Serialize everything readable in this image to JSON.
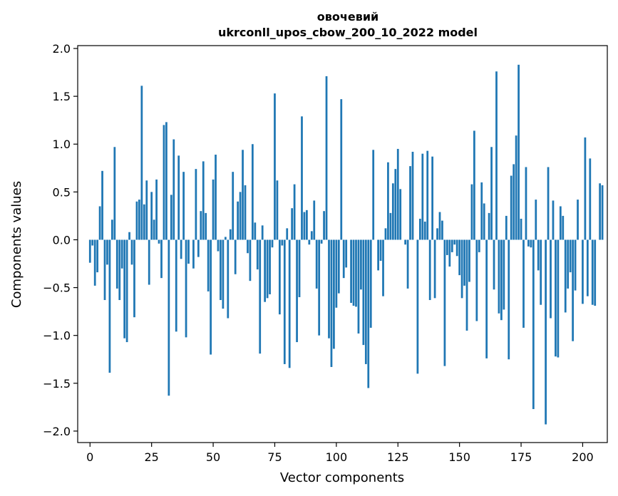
{
  "chart_data": {
    "type": "bar",
    "title_line1": "овочевий",
    "title_line2": "ukrconll_upos_cbow_200_10_2022 model",
    "xlabel": "Vector components",
    "ylabel": "Components values",
    "xlim": [
      -5,
      210
    ],
    "ylim": [
      -2.12,
      2.03
    ],
    "xticks": [
      0,
      25,
      50,
      75,
      100,
      125,
      150,
      175,
      200
    ],
    "yticks": [
      2.0,
      1.5,
      1.0,
      0.5,
      0.0,
      -0.5,
      -1.0,
      -1.5,
      -2.0
    ],
    "ytick_labels": [
      "2.0",
      "1.5",
      "1.0",
      "0.5",
      "0.0",
      "−0.5",
      "−1.0",
      "−1.5",
      "−2.0"
    ],
    "bar_color": "#1f77b4",
    "grid": false,
    "values": [
      -0.24,
      -0.06,
      -0.48,
      -0.34,
      0.35,
      0.72,
      -0.63,
      -0.26,
      -1.39,
      0.21,
      0.97,
      -0.51,
      -0.63,
      -0.3,
      -1.03,
      -1.07,
      0.08,
      -0.26,
      -0.81,
      0.4,
      0.42,
      1.61,
      0.37,
      0.62,
      -0.47,
      0.5,
      0.21,
      0.63,
      -0.04,
      -0.4,
      1.2,
      1.23,
      -1.63,
      0.47,
      1.05,
      -0.96,
      0.88,
      -0.2,
      0.71,
      -1.02,
      -0.25,
      0.0,
      -0.3,
      0.74,
      -0.18,
      0.3,
      0.82,
      0.28,
      -0.54,
      -1.2,
      0.63,
      0.89,
      -0.12,
      -0.63,
      -0.72,
      0.03,
      -0.82,
      0.11,
      0.71,
      -0.36,
      0.4,
      0.5,
      0.94,
      0.57,
      -0.14,
      -0.43,
      1.0,
      0.18,
      -0.31,
      -1.19,
      0.15,
      -0.65,
      -0.61,
      -0.57,
      -0.08,
      1.53,
      0.62,
      -0.78,
      -0.06,
      -1.3,
      0.12,
      -1.34,
      0.33,
      0.58,
      -1.07,
      -0.6,
      1.29,
      0.29,
      0.31,
      -0.05,
      0.09,
      0.41,
      -0.51,
      -1.0,
      -0.04,
      0.3,
      1.71,
      -1.03,
      -1.33,
      -1.14,
      -0.71,
      -0.56,
      1.47,
      -0.4,
      -0.29,
      0.0,
      -0.66,
      -0.69,
      -0.7,
      -0.98,
      -0.52,
      -1.1,
      -1.3,
      -1.55,
      -0.92,
      0.94,
      0.0,
      -0.32,
      -0.22,
      -0.59,
      0.12,
      0.81,
      0.28,
      0.59,
      0.74,
      0.95,
      0.53,
      0.0,
      -0.05,
      -0.51,
      0.77,
      0.92,
      0.0,
      -1.4,
      0.22,
      0.9,
      0.19,
      0.93,
      -0.63,
      0.87,
      -0.61,
      0.12,
      0.29,
      0.2,
      -1.32,
      -0.16,
      -0.28,
      -0.13,
      -0.05,
      -0.17,
      -0.37,
      -0.61,
      -0.48,
      -0.95,
      -0.44,
      0.58,
      1.14,
      -0.85,
      -0.13,
      0.6,
      0.38,
      -1.24,
      0.28,
      0.97,
      -0.52,
      1.76,
      -0.77,
      -0.84,
      -0.73,
      0.25,
      -1.25,
      0.67,
      0.79,
      1.09,
      1.83,
      0.22,
      -0.92,
      0.76,
      -0.07,
      -0.08,
      -1.77,
      0.42,
      -0.32,
      -0.68,
      0.0,
      -1.93,
      0.76,
      -0.82,
      0.41,
      -1.22,
      -1.23,
      0.35,
      0.25,
      -0.76,
      -0.51,
      -0.34,
      -1.06,
      -0.53,
      0.42,
      0.0,
      -0.67,
      1.07,
      -0.59,
      0.85,
      -0.68,
      -0.69,
      0.0,
      0.59,
      0.57
    ]
  }
}
